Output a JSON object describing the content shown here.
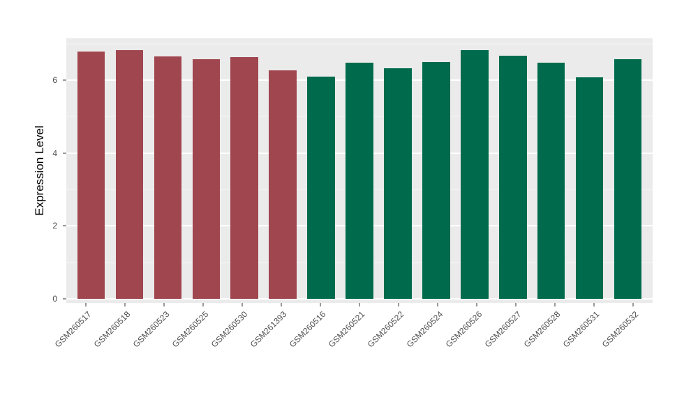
{
  "chart_data": {
    "type": "bar",
    "title": "",
    "xlabel": "",
    "ylabel": "Expression Level",
    "ylim": [
      0,
      7.15
    ],
    "yticks": [
      0,
      2,
      4,
      6
    ],
    "yticks_minor": [
      1,
      3,
      5,
      7
    ],
    "categories": [
      "GSM260517",
      "GSM260518",
      "GSM260523",
      "GSM260525",
      "GSM260530",
      "GSM261393",
      "GSM260516",
      "GSM260521",
      "GSM260522",
      "GSM260524",
      "GSM260526",
      "GSM260527",
      "GSM260528",
      "GSM260531",
      "GSM260532"
    ],
    "values": [
      6.78,
      6.82,
      6.66,
      6.58,
      6.63,
      6.27,
      6.1,
      6.48,
      6.33,
      6.5,
      6.82,
      6.67,
      6.49,
      6.08,
      6.58
    ],
    "group_of_bar": [
      "A",
      "A",
      "A",
      "A",
      "A",
      "A",
      "B",
      "B",
      "B",
      "B",
      "B",
      "B",
      "B",
      "B",
      "B"
    ],
    "group_colors": {
      "A": "#A0464E",
      "B": "#006B4C"
    },
    "legend_position": "none",
    "grid": true,
    "panel_background": "#EBEBEB",
    "grid_major_color": "#FFFFFF",
    "grid_minor_color": "#FFFFFF",
    "tick_label_color": "#4D4D4D",
    "axis_title_color": "#000000"
  }
}
